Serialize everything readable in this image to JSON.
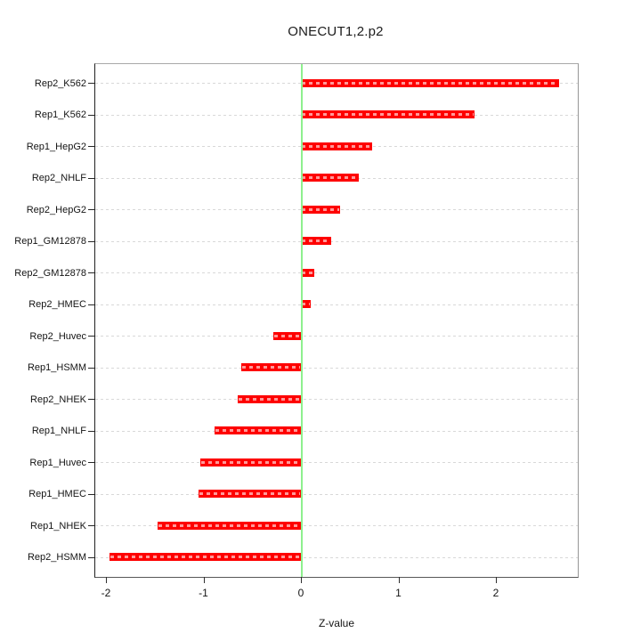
{
  "chart_data": {
    "type": "bar",
    "orientation": "horizontal",
    "title": "ONECUT1,2.p2",
    "xlabel": "Z-value",
    "categories": [
      "Rep2_K562",
      "Rep1_K562",
      "Rep1_HepG2",
      "Rep2_NHLF",
      "Rep2_HepG2",
      "Rep1_GM12878",
      "Rep2_GM12878",
      "Rep2_HMEC",
      "Rep2_Huvec",
      "Rep1_HSMM",
      "Rep2_NHEK",
      "Rep1_NHLF",
      "Rep1_Huvec",
      "Rep1_HMEC",
      "Rep1_NHEK",
      "Rep2_HSMM"
    ],
    "values": [
      2.65,
      1.78,
      0.73,
      0.59,
      0.4,
      0.31,
      0.14,
      0.1,
      -0.28,
      -0.61,
      -0.65,
      -0.89,
      -1.03,
      -1.05,
      -1.47,
      -1.96
    ],
    "xticks": [
      "-2",
      "-1",
      "0",
      "1",
      "2"
    ],
    "xlim": [
      -2.12,
      2.83
    ],
    "zero_reference_line": 0,
    "grid": "dashed horizontal line per category",
    "legend": "none",
    "colors": {
      "bar": "#fe0000",
      "bar_dash_overlay": "#ff9a9a",
      "zero_line": "#8ef08e",
      "grid": "#d8d8d8",
      "box_top_right": "#a0a0a0",
      "axis_left_bottom": "#333333",
      "text": "#141414",
      "background": "#ffffff"
    }
  }
}
